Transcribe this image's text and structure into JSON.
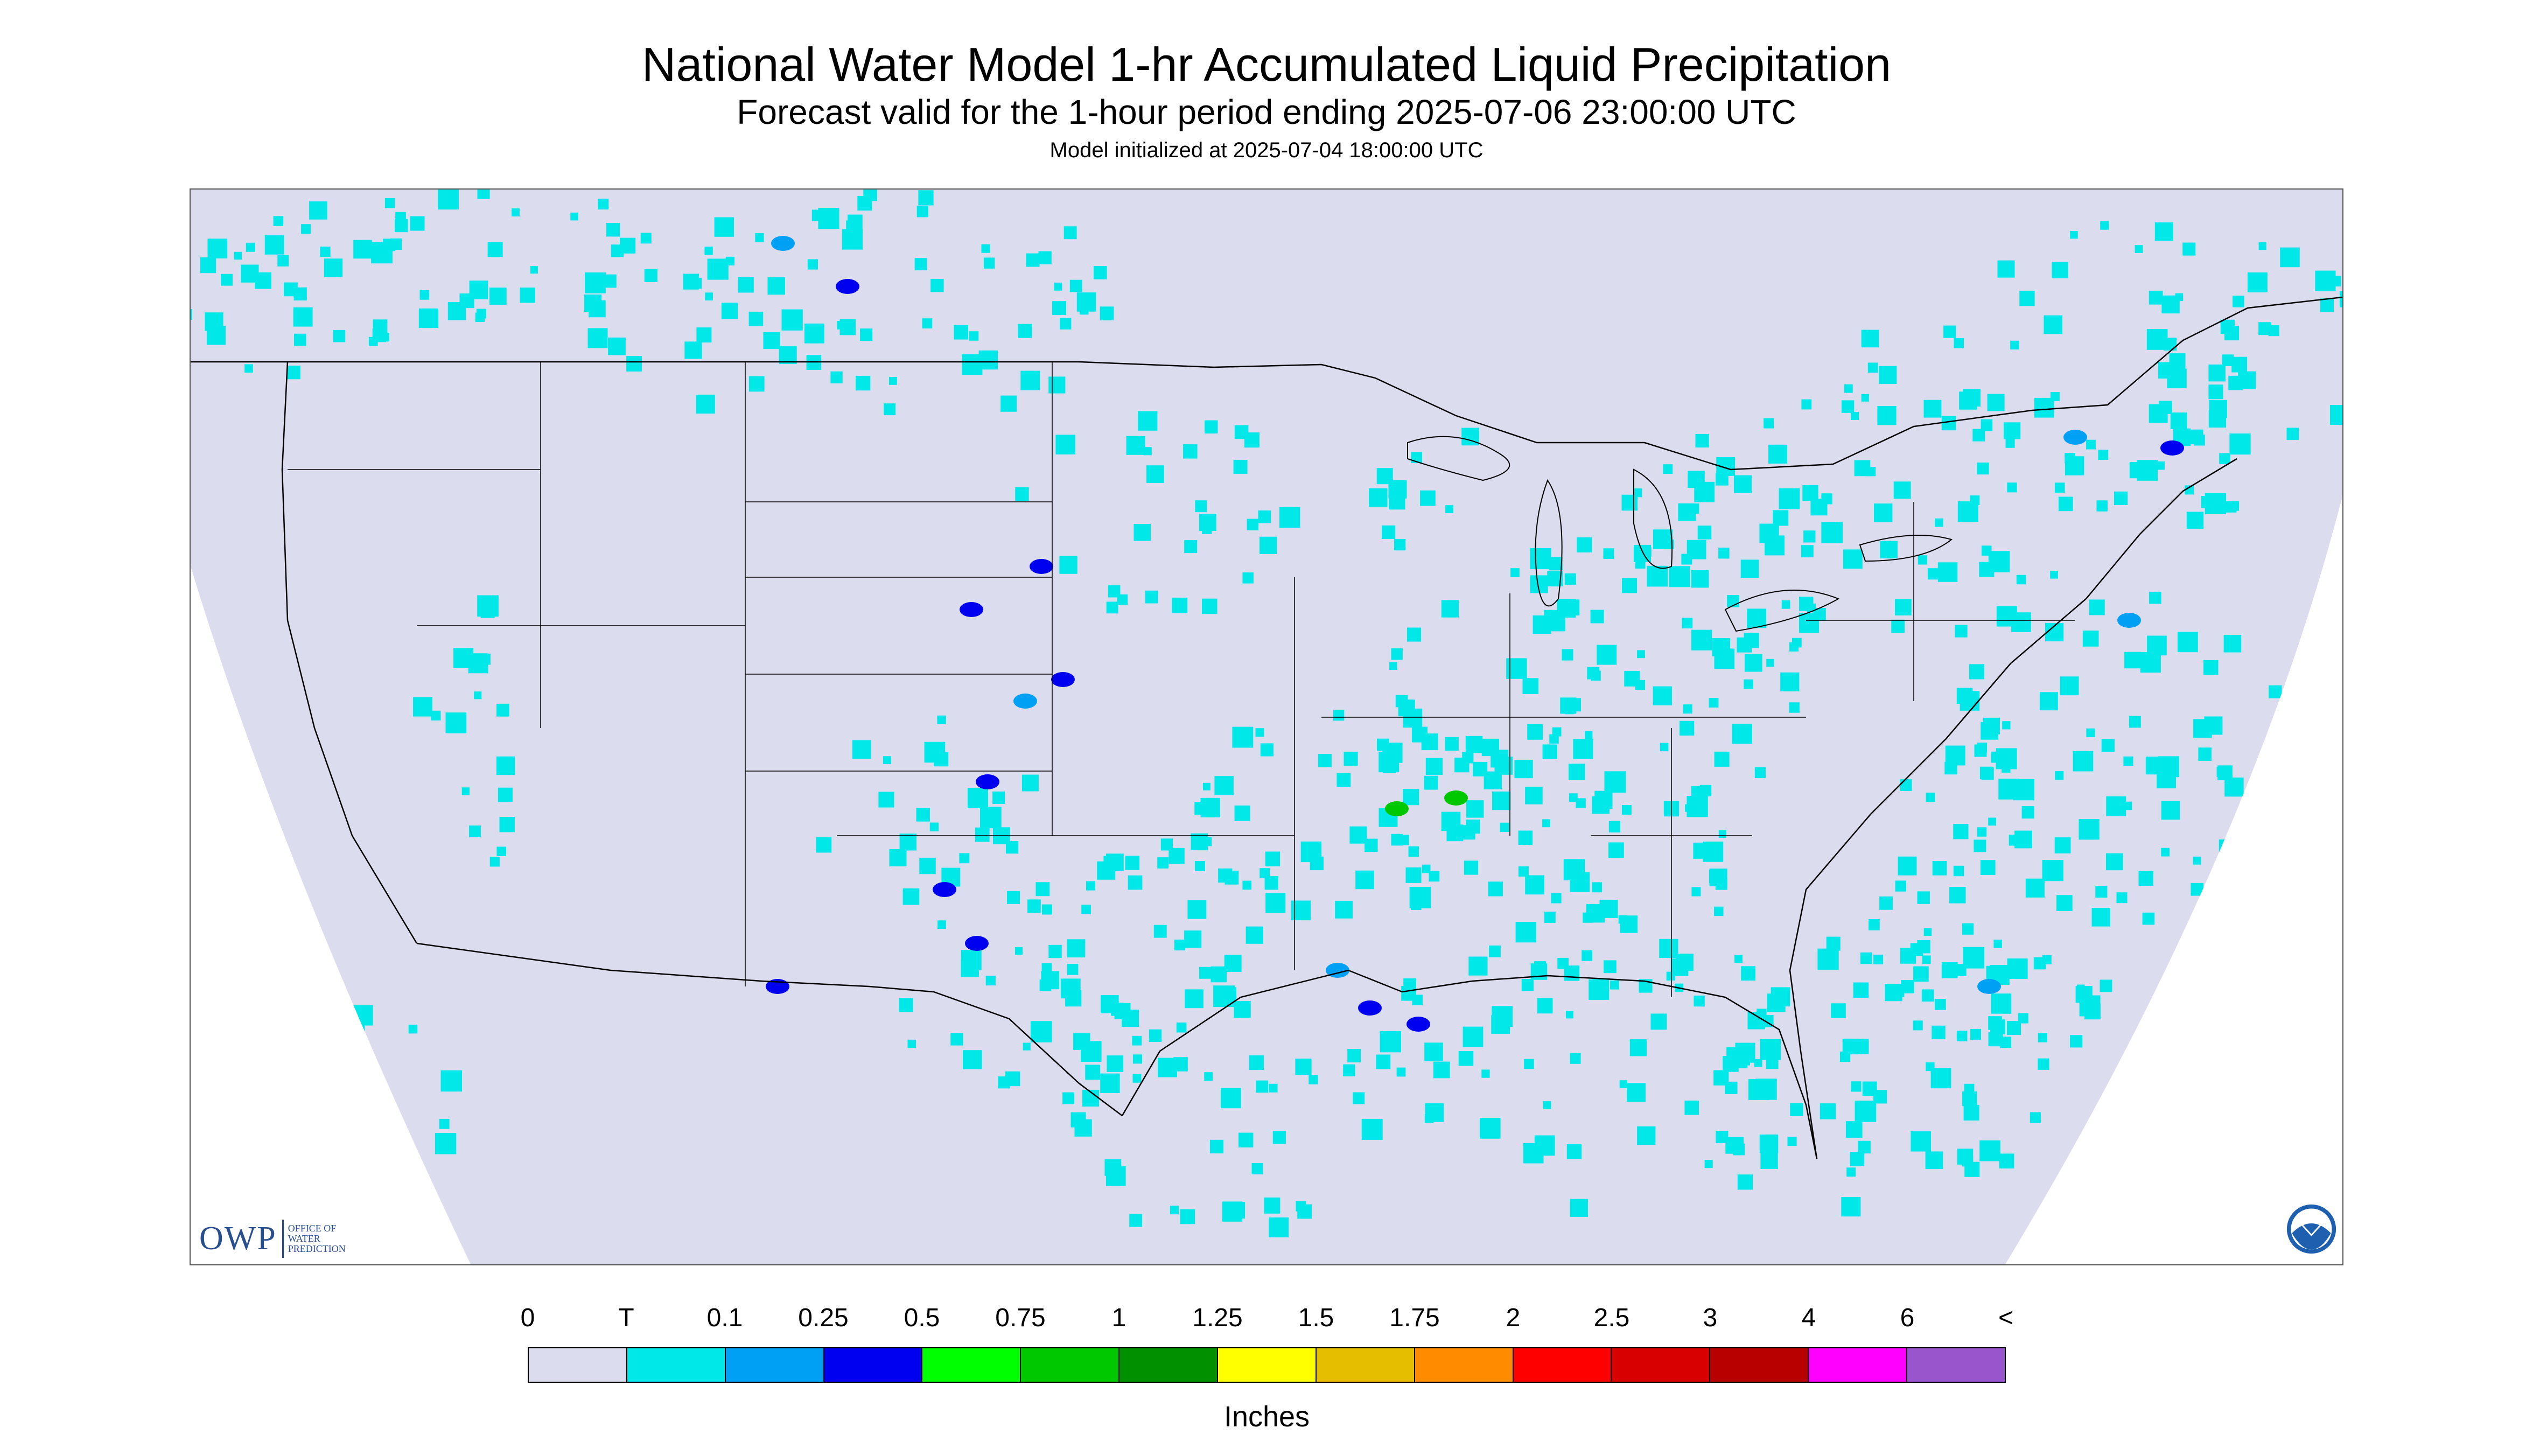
{
  "header": {
    "title": "National Water Model 1-hr Accumulated Liquid Precipitation",
    "subtitle": "Forecast valid for the 1-hour period ending 2025-07-06 23:00:00 UTC",
    "init": "Model initialized at 2025-07-04 18:00:00 UTC"
  },
  "map": {
    "background_color": "#dcdcef",
    "outside_color": "#ffffff",
    "boundary_color": "#000000"
  },
  "legend": {
    "labels": [
      "0",
      "T",
      "0.1",
      "0.25",
      "0.5",
      "0.75",
      "1",
      "1.25",
      "1.5",
      "1.75",
      "2",
      "2.5",
      "3",
      "4",
      "6",
      "<"
    ],
    "colors": [
      "#dcdcef",
      "#00e8e8",
      "#00a0f5",
      "#0000f0",
      "#00ff00",
      "#00c800",
      "#009000",
      "#ffff00",
      "#e6be00",
      "#ff8c00",
      "#ff0000",
      "#d80000",
      "#b80000",
      "#ff00ff",
      "#9955cc"
    ],
    "units": "Inches"
  },
  "logos": {
    "owp_mark": "OWP",
    "owp_text": "Office of Water Prediction",
    "noaa_icon": "noaa-logo-icon"
  }
}
